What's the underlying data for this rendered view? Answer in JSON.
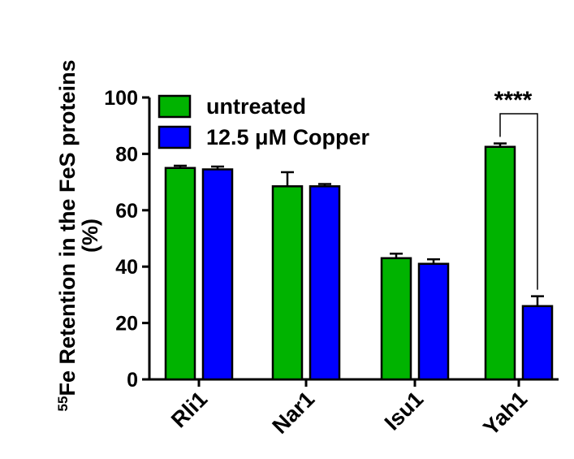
{
  "chart_data": {
    "type": "bar",
    "categories": [
      "Rli1",
      "Nar1",
      "Isu1",
      "Yah1"
    ],
    "series": [
      {
        "name": "untreated",
        "color": "#00b300",
        "values": [
          75,
          68.5,
          43,
          82.5
        ],
        "errors": [
          0.8,
          5,
          1.6,
          1.2
        ]
      },
      {
        "name": "12.5 μM Copper",
        "color": "#0000ff",
        "values": [
          74.5,
          68.5,
          41,
          26
        ],
        "errors": [
          1,
          0.8,
          1.6,
          3.5
        ]
      }
    ],
    "ylabel_sup": "55",
    "ylabel_line1": "Fe Retention in the FeS proteins",
    "ylabel_line2": "(%)",
    "ylim": [
      0,
      100
    ],
    "yticks": [
      0,
      20,
      40,
      60,
      80,
      100
    ],
    "legend_position": "top-left",
    "annotation": {
      "text": "****",
      "category": "Yah1"
    }
  }
}
